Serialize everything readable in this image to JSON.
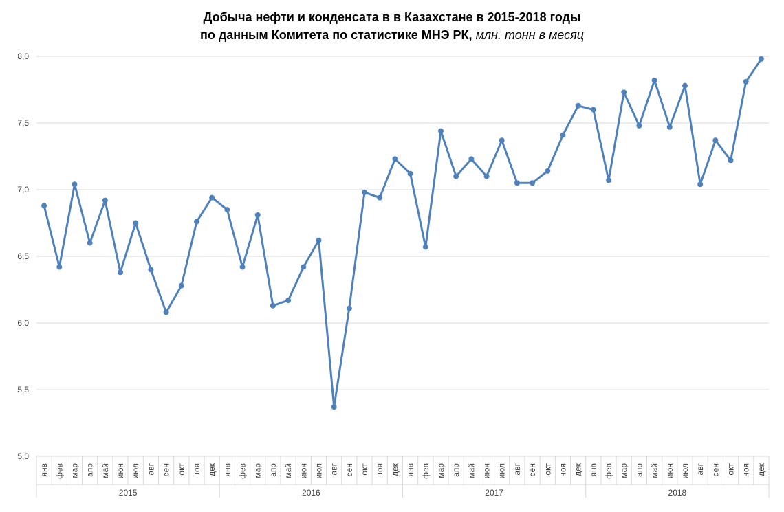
{
  "chart_data": {
    "type": "line",
    "title_line1": "Добыча нефти и конденсата в в Казахстане в 2015-2018 годы",
    "title_line2_main": "по данным Комитета по статистике МНЭ РК,",
    "title_line2_unit": "млн. тонн в месяц",
    "ylim": [
      5.0,
      8.0
    ],
    "y_ticks": [
      "5,0",
      "5,5",
      "6,0",
      "6,5",
      "7,0",
      "7,5",
      "8,0"
    ],
    "y_tick_values": [
      5.0,
      5.5,
      6.0,
      6.5,
      7.0,
      7.5,
      8.0
    ],
    "grid": true,
    "years": [
      "2015",
      "2016",
      "2017",
      "2018"
    ],
    "months": [
      "янв",
      "фев",
      "мар",
      "апр",
      "май",
      "июн",
      "июл",
      "авг",
      "сен",
      "окт",
      "ноя",
      "дек"
    ],
    "series": [
      {
        "name": "Добыча нефти и конденсата",
        "color": "#4f81bd",
        "values": [
          6.88,
          6.42,
          7.04,
          6.6,
          6.92,
          6.38,
          6.75,
          6.4,
          6.08,
          6.28,
          6.76,
          6.94,
          6.85,
          6.42,
          6.81,
          6.13,
          6.17,
          6.42,
          6.62,
          5.37,
          6.11,
          6.98,
          6.94,
          7.23,
          7.12,
          6.57,
          7.44,
          7.1,
          7.23,
          7.1,
          7.37,
          7.05,
          7.05,
          7.14,
          7.41,
          7.63,
          7.6,
          7.07,
          7.73,
          7.48,
          7.82,
          7.47,
          7.78,
          7.04,
          7.37,
          7.22,
          7.81,
          7.98
        ]
      }
    ]
  }
}
